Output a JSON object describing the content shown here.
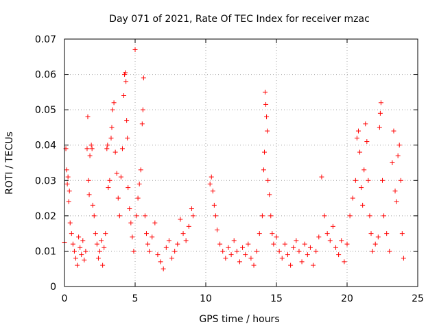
{
  "chart_data": {
    "type": "scatter",
    "title": "Day 071 of 2021, Rate Of TEC Index for receiver mzac",
    "xlabel": "GPS time / hours",
    "ylabel": "ROTI / TECUs",
    "xlim": [
      0,
      25
    ],
    "ylim": [
      0,
      0.07
    ],
    "xticks": [
      0,
      5,
      10,
      15,
      20,
      25
    ],
    "xtick_labels": [
      "0",
      "5",
      "10",
      "15",
      "20",
      "25"
    ],
    "yticks": [
      0,
      0.01,
      0.02,
      0.03,
      0.04,
      0.05,
      0.06,
      0.07
    ],
    "ytick_labels": [
      "0",
      "0.01",
      "0.02",
      "0.03",
      "0.04",
      "0.05",
      "0.06",
      "0.07"
    ],
    "grid": true,
    "marker": "+",
    "color": "#ff0000",
    "series": [
      {
        "name": "ROTI",
        "points": [
          [
            0.0,
            0.0125
          ],
          [
            0.1,
            0.039
          ],
          [
            0.15,
            0.033
          ],
          [
            0.2,
            0.029
          ],
          [
            0.25,
            0.031
          ],
          [
            0.3,
            0.024
          ],
          [
            0.35,
            0.027
          ],
          [
            0.4,
            0.018
          ],
          [
            0.5,
            0.015
          ],
          [
            0.6,
            0.012
          ],
          [
            0.7,
            0.01
          ],
          [
            0.8,
            0.008
          ],
          [
            0.9,
            0.006
          ],
          [
            1.0,
            0.014
          ],
          [
            1.1,
            0.011
          ],
          [
            1.2,
            0.009
          ],
          [
            1.3,
            0.013
          ],
          [
            1.4,
            0.0075
          ],
          [
            1.5,
            0.01
          ],
          [
            1.6,
            0.039
          ],
          [
            1.65,
            0.048
          ],
          [
            1.7,
            0.03
          ],
          [
            1.75,
            0.026
          ],
          [
            1.8,
            0.037
          ],
          [
            1.9,
            0.04
          ],
          [
            1.95,
            0.039
          ],
          [
            2.0,
            0.023
          ],
          [
            2.1,
            0.02
          ],
          [
            2.2,
            0.015
          ],
          [
            2.3,
            0.012
          ],
          [
            2.4,
            0.008
          ],
          [
            2.5,
            0.01
          ],
          [
            2.6,
            0.013
          ],
          [
            2.7,
            0.006
          ],
          [
            2.8,
            0.011
          ],
          [
            2.9,
            0.015
          ],
          [
            3.0,
            0.039
          ],
          [
            3.05,
            0.04
          ],
          [
            3.1,
            0.028
          ],
          [
            3.2,
            0.03
          ],
          [
            3.3,
            0.042
          ],
          [
            3.35,
            0.045
          ],
          [
            3.4,
            0.05
          ],
          [
            3.5,
            0.052
          ],
          [
            3.6,
            0.038
          ],
          [
            3.7,
            0.032
          ],
          [
            3.8,
            0.025
          ],
          [
            3.9,
            0.02
          ],
          [
            4.0,
            0.031
          ],
          [
            4.1,
            0.039
          ],
          [
            4.2,
            0.054
          ],
          [
            4.25,
            0.06
          ],
          [
            4.3,
            0.0605
          ],
          [
            4.35,
            0.058
          ],
          [
            4.4,
            0.047
          ],
          [
            4.45,
            0.042
          ],
          [
            4.5,
            0.028
          ],
          [
            4.6,
            0.022
          ],
          [
            4.7,
            0.018
          ],
          [
            4.8,
            0.014
          ],
          [
            4.9,
            0.01
          ],
          [
            5.0,
            0.067
          ],
          [
            5.1,
            0.02
          ],
          [
            5.2,
            0.025
          ],
          [
            5.3,
            0.029
          ],
          [
            5.4,
            0.033
          ],
          [
            5.5,
            0.046
          ],
          [
            5.55,
            0.05
          ],
          [
            5.6,
            0.059
          ],
          [
            5.7,
            0.02
          ],
          [
            5.8,
            0.015
          ],
          [
            5.9,
            0.012
          ],
          [
            6.0,
            0.01
          ],
          [
            6.2,
            0.014
          ],
          [
            6.4,
            0.018
          ],
          [
            6.6,
            0.009
          ],
          [
            6.8,
            0.007
          ],
          [
            7.0,
            0.005
          ],
          [
            7.2,
            0.011
          ],
          [
            7.4,
            0.013
          ],
          [
            7.6,
            0.008
          ],
          [
            7.8,
            0.01
          ],
          [
            8.0,
            0.012
          ],
          [
            8.2,
            0.019
          ],
          [
            8.4,
            0.015
          ],
          [
            8.6,
            0.013
          ],
          [
            8.8,
            0.017
          ],
          [
            9.0,
            0.022
          ],
          [
            9.1,
            0.02
          ],
          [
            10.3,
            0.029
          ],
          [
            10.4,
            0.031
          ],
          [
            10.5,
            0.027
          ],
          [
            10.6,
            0.023
          ],
          [
            10.7,
            0.02
          ],
          [
            10.8,
            0.016
          ],
          [
            11.0,
            0.012
          ],
          [
            11.2,
            0.01
          ],
          [
            11.4,
            0.008
          ],
          [
            11.6,
            0.011
          ],
          [
            11.8,
            0.009
          ],
          [
            12.0,
            0.013
          ],
          [
            12.2,
            0.01
          ],
          [
            12.4,
            0.007
          ],
          [
            12.6,
            0.011
          ],
          [
            12.8,
            0.009
          ],
          [
            13.0,
            0.012
          ],
          [
            13.2,
            0.008
          ],
          [
            13.4,
            0.006
          ],
          [
            13.6,
            0.01
          ],
          [
            13.8,
            0.015
          ],
          [
            14.0,
            0.02
          ],
          [
            14.1,
            0.033
          ],
          [
            14.15,
            0.038
          ],
          [
            14.2,
            0.055
          ],
          [
            14.25,
            0.0515
          ],
          [
            14.3,
            0.048
          ],
          [
            14.35,
            0.044
          ],
          [
            14.4,
            0.03
          ],
          [
            14.5,
            0.026
          ],
          [
            14.6,
            0.02
          ],
          [
            14.7,
            0.015
          ],
          [
            14.8,
            0.012
          ],
          [
            15.0,
            0.014
          ],
          [
            15.2,
            0.01
          ],
          [
            15.4,
            0.008
          ],
          [
            15.6,
            0.012
          ],
          [
            15.8,
            0.009
          ],
          [
            16.0,
            0.006
          ],
          [
            16.2,
            0.011
          ],
          [
            16.4,
            0.013
          ],
          [
            16.6,
            0.01
          ],
          [
            16.8,
            0.007
          ],
          [
            17.0,
            0.012
          ],
          [
            17.2,
            0.009
          ],
          [
            17.4,
            0.011
          ],
          [
            17.6,
            0.006
          ],
          [
            17.8,
            0.01
          ],
          [
            18.0,
            0.014
          ],
          [
            18.2,
            0.031
          ],
          [
            18.4,
            0.02
          ],
          [
            18.6,
            0.015
          ],
          [
            18.8,
            0.013
          ],
          [
            19.0,
            0.017
          ],
          [
            19.2,
            0.011
          ],
          [
            19.4,
            0.009
          ],
          [
            19.6,
            0.013
          ],
          [
            19.8,
            0.007
          ],
          [
            20.0,
            0.012
          ],
          [
            20.2,
            0.02
          ],
          [
            20.4,
            0.025
          ],
          [
            20.6,
            0.03
          ],
          [
            20.7,
            0.042
          ],
          [
            20.8,
            0.044
          ],
          [
            20.9,
            0.038
          ],
          [
            21.0,
            0.028
          ],
          [
            21.1,
            0.023
          ],
          [
            21.2,
            0.033
          ],
          [
            21.3,
            0.046
          ],
          [
            21.4,
            0.041
          ],
          [
            21.5,
            0.03
          ],
          [
            21.6,
            0.02
          ],
          [
            21.7,
            0.015
          ],
          [
            21.8,
            0.01
          ],
          [
            22.0,
            0.012
          ],
          [
            22.2,
            0.014
          ],
          [
            22.3,
            0.045
          ],
          [
            22.35,
            0.049
          ],
          [
            22.4,
            0.052
          ],
          [
            22.5,
            0.03
          ],
          [
            22.6,
            0.02
          ],
          [
            22.8,
            0.015
          ],
          [
            23.0,
            0.01
          ],
          [
            23.2,
            0.035
          ],
          [
            23.3,
            0.044
          ],
          [
            23.4,
            0.027
          ],
          [
            23.5,
            0.024
          ],
          [
            23.6,
            0.037
          ],
          [
            23.7,
            0.04
          ],
          [
            23.8,
            0.03
          ],
          [
            23.9,
            0.015
          ],
          [
            24.0,
            0.008
          ]
        ]
      }
    ]
  }
}
